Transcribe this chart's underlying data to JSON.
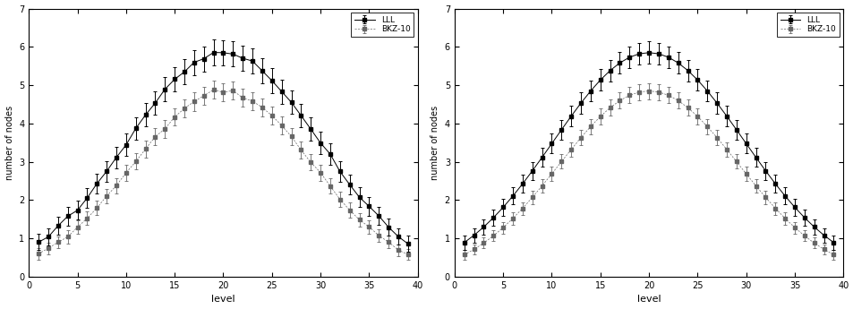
{
  "xlabel": "level",
  "ylabel": "number of nodes",
  "xlim": [
    0,
    40
  ],
  "ylim": [
    0,
    7
  ],
  "xticks": [
    0,
    5,
    10,
    15,
    20,
    25,
    30,
    35,
    40
  ],
  "yticks": [
    0,
    1,
    2,
    3,
    4,
    5,
    6,
    7
  ],
  "legend_labels": [
    "LLL",
    "BKZ-10"
  ],
  "lll_color": "#000000",
  "bkz_color": "#666666",
  "background_color": "#ffffff",
  "fig_background": "#ffffff"
}
